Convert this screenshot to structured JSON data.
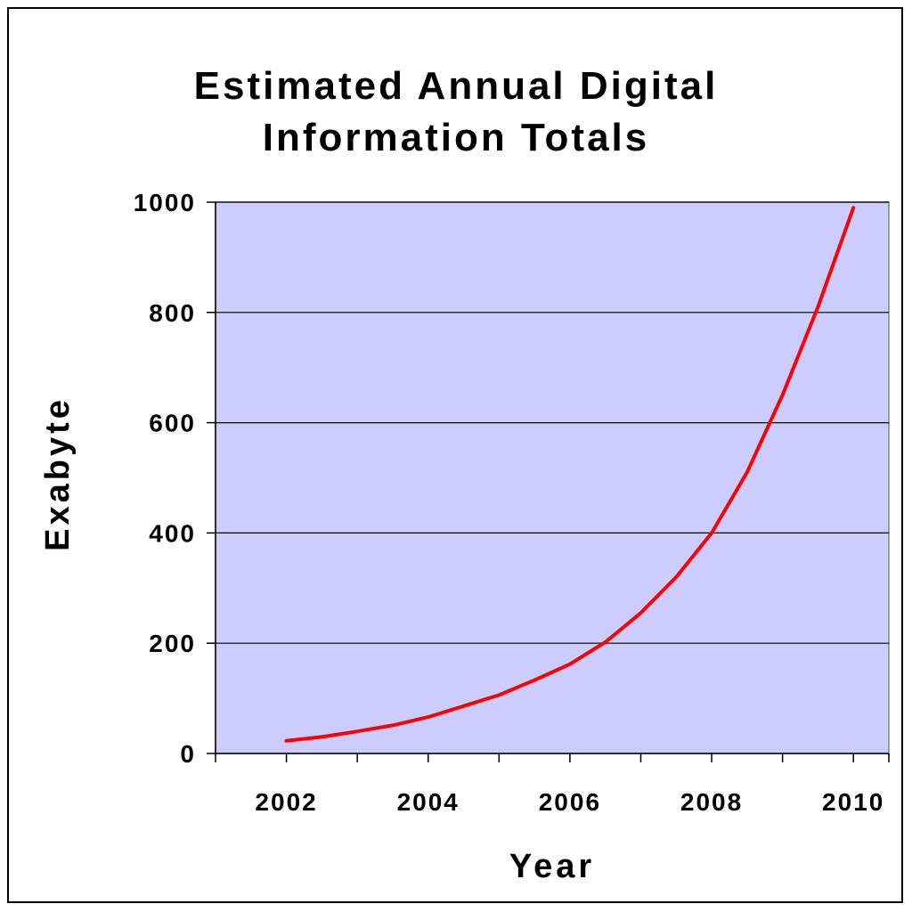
{
  "chart_data": {
    "type": "line",
    "title": [
      "Estimated Annual Digital",
      "Information Totals"
    ],
    "xlabel": "Year",
    "ylabel": "Exabyte",
    "xlim": [
      2001,
      2010.5
    ],
    "ylim": [
      0,
      1000
    ],
    "x_ticks": [
      2002,
      2004,
      2006,
      2008,
      2010
    ],
    "y_ticks": [
      0,
      200,
      400,
      600,
      800,
      1000
    ],
    "grid": true,
    "plot_background": "#ccccff",
    "series": [
      {
        "color": "#ff0000",
        "x": [
          2002,
          2002.5,
          2003,
          2003.5,
          2004,
          2004.5,
          2005,
          2005.5,
          2006,
          2006.5,
          2007,
          2007.5,
          2008,
          2008.5,
          2009,
          2009.5,
          2010
        ],
        "y": [
          23,
          30,
          40,
          51,
          66,
          86,
          106,
          133,
          162,
          202,
          255,
          320,
          400,
          510,
          650,
          810,
          990
        ]
      }
    ]
  }
}
